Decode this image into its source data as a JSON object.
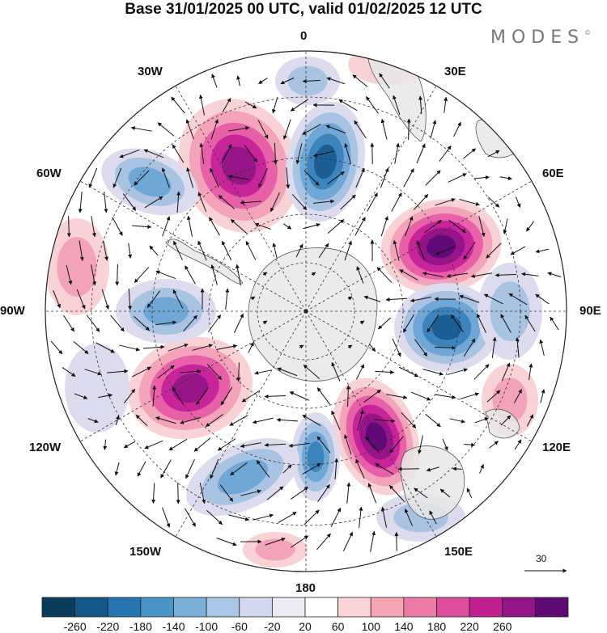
{
  "title": "Base 31/01/2025 00 UTC, valid 01/02/2025 12 UTC",
  "brand": "MODES",
  "brand_mark": "©",
  "longitudes": {
    "top": "0",
    "e30": "30E",
    "e60": "60E",
    "e90": "90E",
    "e120": "120E",
    "e150": "150E",
    "bottom": "180",
    "w150": "150W",
    "w120": "120W",
    "w90": "90W",
    "w60": "60W",
    "w30": "30W"
  },
  "vector_scale": "30",
  "colorbar": {
    "labels": [
      "-260",
      "-220",
      "-180",
      "-140",
      "-100",
      "-60",
      "-20",
      "20",
      "60",
      "100",
      "140",
      "180",
      "220",
      "260"
    ],
    "colors": [
      "#0b3c5c",
      "#14588a",
      "#2674b0",
      "#4a94c8",
      "#7aafd8",
      "#a9c6e4",
      "#d3d9ee",
      "#ecebf4",
      "#ffffff",
      "#fbd5d5",
      "#f5a6b3",
      "#ee7aa7",
      "#e04c9d",
      "#c22090",
      "#921485",
      "#5e0a72"
    ]
  },
  "anomaly_colors": {
    "pos1": "#f9d2d6",
    "pos2": "#f3a4bb",
    "pos3": "#e860a8",
    "pos4": "#c8249a",
    "pos5": "#961488",
    "pos6": "#62097a",
    "neg1": "#dcdcee",
    "neg2": "#a9c3e3",
    "neg3": "#6fa7d6",
    "neg4": "#3d84bd",
    "neg5": "#1a5e94",
    "land": "#e8e8e8"
  }
}
